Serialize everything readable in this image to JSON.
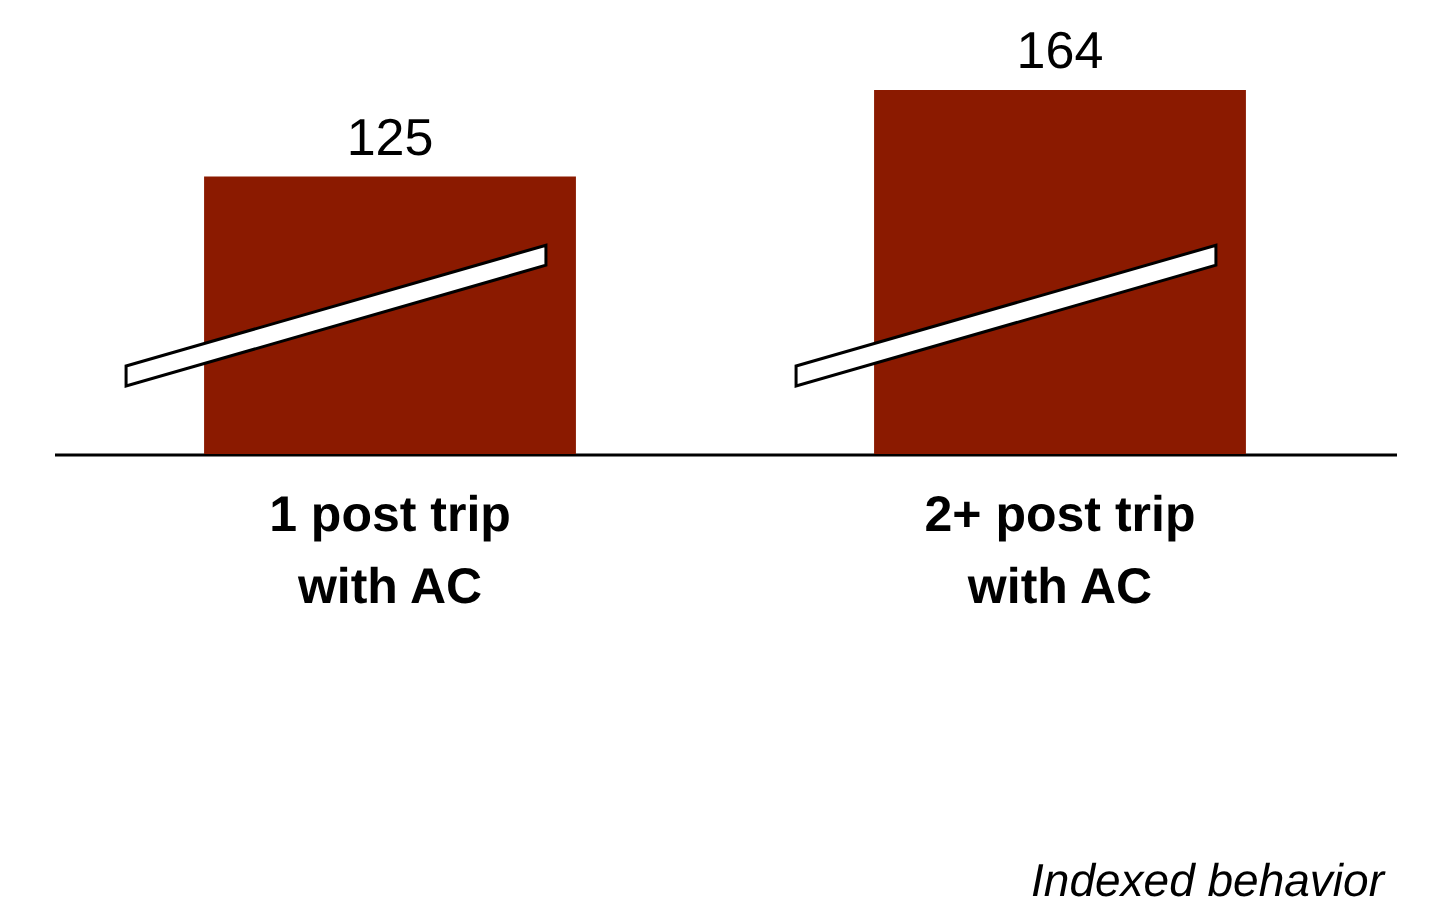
{
  "chart_data": {
    "type": "bar",
    "categories": [
      "1 post trip with AC",
      "2+ post trip with AC"
    ],
    "values": [
      125,
      164
    ],
    "color": "#8b1a00",
    "data_labels": true,
    "annotations": [
      "Indexed behavior"
    ]
  }
}
